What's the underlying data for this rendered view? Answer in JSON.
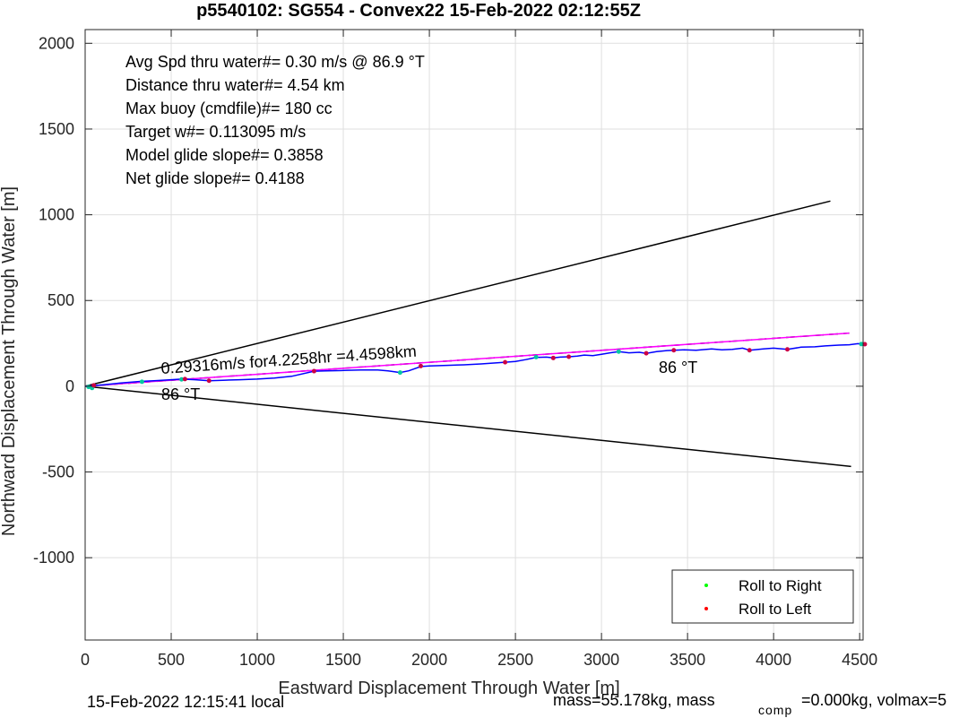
{
  "chart_data": {
    "type": "line",
    "title": "p5540102: SG554 - Convex22 15-Feb-2022 02:12:55Z",
    "xlabel": "Eastward Displacement Through Water [m]",
    "ylabel": "Northward Displacement Through Water [m]",
    "xlim": [
      0,
      4520
    ],
    "ylim": [
      -1480,
      2080
    ],
    "xticks": [
      0,
      500,
      1000,
      1500,
      2000,
      2500,
      3000,
      3500,
      4000,
      4500
    ],
    "yticks": [
      2000,
      1500,
      1000,
      500,
      0,
      -500,
      -1000
    ],
    "grid": true,
    "legend_position": "bottom-right",
    "stats": [
      "Avg Spd thru water#=  0.30 m/s @  86.9        °T",
      "Distance thru water#=  4.54 km",
      "Max buoy (cmdfile)#= 180 cc",
      "Target w#= 0.113095 m/s",
      "Model glide slope#= 0.3858",
      "Net glide slope#= 0.4188"
    ],
    "annotations": {
      "speed_label": "0.29316m/s for4.2258hr =4.4598km",
      "heading_left": "86 °T",
      "heading_right": "86 °T"
    },
    "footer": {
      "local_time": "15-Feb-2022 12:15:41 local",
      "mass_a": "mass=55.178kg, mass",
      "mass_sub": "comp",
      "mass_b": "=0.000kg, volmax=5"
    },
    "series": [
      {
        "name": "cone_upper",
        "color": "#000000",
        "x": [
          0,
          4330
        ],
        "y": [
          0,
          1080
        ]
      },
      {
        "name": "cone_lower",
        "color": "#000000",
        "x": [
          0,
          4450
        ],
        "y": [
          0,
          -468
        ]
      },
      {
        "name": "mean_track",
        "color": "#000000",
        "dashed": true,
        "x": [
          0,
          4440
        ],
        "y": [
          0,
          310
        ]
      },
      {
        "name": "magenta_track",
        "color": "#ff00ff",
        "x": [
          0,
          4440
        ],
        "y": [
          0,
          310
        ]
      },
      {
        "name": "glider_track",
        "color": "#0000ff",
        "x": [
          0,
          100,
          200,
          320,
          400,
          500,
          560,
          640,
          720,
          800,
          900,
          1000,
          1100,
          1200,
          1330,
          1400,
          1500,
          1600,
          1700,
          1760,
          1830,
          1880,
          1950,
          2000,
          2100,
          2200,
          2300,
          2440,
          2500,
          2560,
          2620,
          2680,
          2720,
          2760,
          2810,
          2860,
          2900,
          2950,
          3000,
          3050,
          3100,
          3160,
          3220,
          3260,
          3320,
          3380,
          3420,
          3480,
          3550,
          3640,
          3700,
          3760,
          3820,
          3860,
          3940,
          4000,
          4080,
          4160,
          4240,
          4300,
          4380,
          4440,
          4490,
          4530
        ],
        "y": [
          0,
          8,
          18,
          28,
          32,
          38,
          42,
          38,
          32,
          35,
          38,
          42,
          48,
          58,
          88,
          90,
          92,
          95,
          95,
          90,
          80,
          90,
          115,
          118,
          122,
          125,
          130,
          140,
          145,
          155,
          168,
          170,
          165,
          170,
          172,
          176,
          182,
          178,
          186,
          195,
          202,
          195,
          198,
          192,
          202,
          208,
          210,
          212,
          210,
          218,
          212,
          215,
          222,
          210,
          218,
          222,
          215,
          228,
          230,
          235,
          240,
          242,
          248,
          245
        ]
      }
    ],
    "legend": [
      {
        "label": "Roll to Right",
        "color": "#00ff00"
      },
      {
        "label": "Roll to Left",
        "color": "#ff0000"
      }
    ],
    "markers": {
      "green": [
        [
          20,
          -4
        ],
        [
          40,
          -10
        ],
        [
          330,
          26
        ],
        [
          560,
          40
        ],
        [
          1830,
          80
        ],
        [
          2620,
          170
        ],
        [
          3100,
          202
        ],
        [
          4510,
          246
        ]
      ],
      "red": [
        [
          50,
          5
        ],
        [
          580,
          42
        ],
        [
          720,
          32
        ],
        [
          1330,
          88
        ],
        [
          1950,
          118
        ],
        [
          2440,
          140
        ],
        [
          2720,
          165
        ],
        [
          2810,
          172
        ],
        [
          3260,
          192
        ],
        [
          3420,
          210
        ],
        [
          3860,
          210
        ],
        [
          4080,
          215
        ],
        [
          4530,
          245
        ]
      ]
    }
  }
}
